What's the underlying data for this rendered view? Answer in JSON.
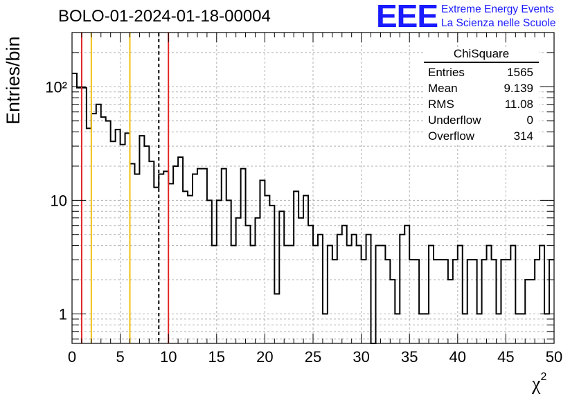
{
  "chart_data": {
    "type": "histogram",
    "title": "BOLO-01-2024-01-18-00004",
    "xlabel": "χ",
    "xlabel_sup": "2",
    "ylabel": "Entries/bin",
    "xlim": [
      0,
      50
    ],
    "ylim": [
      0.55,
      300
    ],
    "yscale": "log",
    "grid": true,
    "bin_width": 0.5,
    "values": [
      131,
      98,
      98,
      43,
      58,
      70,
      54,
      50,
      33,
      42,
      31,
      39,
      21,
      17,
      37,
      30,
      22,
      13,
      17,
      18,
      14,
      20,
      24,
      12,
      11,
      17,
      19,
      19,
      10,
      4,
      10,
      19,
      10,
      4,
      7,
      19,
      6,
      4,
      7,
      15,
      11,
      9,
      1.5,
      8,
      4,
      4,
      12,
      7,
      11,
      6,
      4,
      5,
      1,
      4,
      3,
      5,
      6,
      4,
      5,
      4,
      3,
      5,
      0.5,
      4,
      4,
      3,
      2,
      1,
      5,
      6,
      3,
      3,
      1,
      1,
      4,
      3,
      3,
      3,
      2,
      3,
      4,
      1,
      3,
      3,
      1,
      3,
      4,
      3,
      1,
      3,
      3,
      4,
      1,
      1,
      2,
      2,
      3,
      4,
      1,
      3
    ],
    "x_ticks": [
      "0",
      "5",
      "10",
      "15",
      "20",
      "25",
      "30",
      "35",
      "40",
      "45",
      "50"
    ],
    "y_ticks": [
      "1",
      "10",
      "10²"
    ],
    "vlines": [
      {
        "x": 1.0,
        "color": "#e32222",
        "style": "solid"
      },
      {
        "x": 2.0,
        "color": "#f2c10e",
        "style": "solid"
      },
      {
        "x": 6.0,
        "color": "#f2c10e",
        "style": "solid"
      },
      {
        "x": 9.0,
        "color": "#000000",
        "style": "dashed"
      },
      {
        "x": 10.0,
        "color": "#e32222",
        "style": "solid"
      }
    ]
  },
  "stats_box": {
    "title": "ChiSquare",
    "rows": [
      {
        "label": "Entries",
        "value": "1565"
      },
      {
        "label": "Mean",
        "value": "9.139"
      },
      {
        "label": "RMS",
        "value": "11.08"
      },
      {
        "label": "Underflow",
        "value": "0"
      },
      {
        "label": "Overflow",
        "value": "314"
      }
    ]
  },
  "logo": {
    "mark": "EEE",
    "line1": "Extreme Energy Events",
    "line2": "La Scienza nelle Scuole",
    "color": "#1a1aff"
  }
}
